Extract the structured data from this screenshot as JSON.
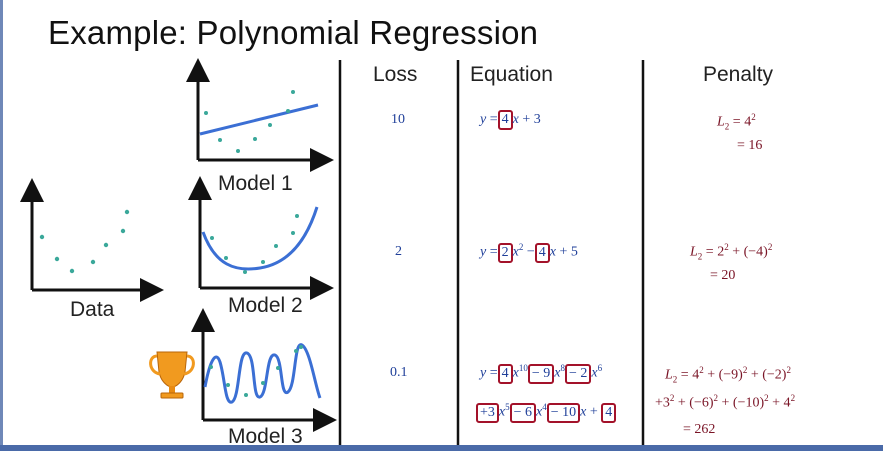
{
  "slide": {
    "title": "Example: Polynomial Regression",
    "headers": {
      "loss": "Loss",
      "equation": "Equation",
      "penalty": "Penalty"
    },
    "data_label": "Data",
    "trophy_icon": "trophy-icon",
    "colors": {
      "equation_text": "#1f3f99",
      "penalty_text": "#7a1426",
      "coefficient_box": "#a3122a",
      "curve": "#3b6fd4",
      "points": "#3aa89a",
      "trophy": "#f19a1f"
    },
    "models": [
      {
        "name": "Model 1",
        "loss": "10",
        "equation": {
          "y": "y",
          "eq": "=",
          "c1": "4",
          "t1": "x",
          "rest": " + 3"
        },
        "penalty": {
          "line1": "= 4",
          "line1_exp": "2",
          "line2": "= 16"
        }
      },
      {
        "name": "Model 2",
        "loss": "2",
        "equation": {
          "y": "y",
          "eq": "=",
          "c1": "2",
          "t1": "x",
          "t1_exp": "2",
          "op1": "−",
          "c2": "4",
          "t2": "x",
          "rest": " + 5"
        },
        "penalty": {
          "line1a": "= 2",
          "line1a_exp": "2",
          "line1b": " + (−4)",
          "line1b_exp": "2",
          "line2": "= 20"
        }
      },
      {
        "name": "Model 3",
        "loss": "0.1",
        "equation": {
          "y": "y",
          "eq": "=",
          "c1": "4",
          "t1": "x",
          "t1_exp": "10",
          "c2": "− 9",
          "t2": "x",
          "t2_exp": "8",
          "c3": "− 2",
          "t3": "x",
          "t3_exp": "6",
          "c4": "+3",
          "t4": "x",
          "t4_exp": "5",
          "c5": "− 6",
          "t5": "x",
          "t5_exp": "4",
          "c6": "− 10",
          "t6": "x",
          "op7": " + ",
          "c7": "4"
        },
        "penalty": {
          "l1a": "= 4",
          "l1a_exp": "2",
          "l1b": " + (−9)",
          "l1b_exp": "2",
          "l1c": " + (−2)",
          "l1c_exp": "2",
          "l2a": "+3",
          "l2a_exp": "2",
          "l2b": " + (−6)",
          "l2b_exp": "2",
          "l2c": " + (−10)",
          "l2c_exp": "2",
          "l2d": " + 4",
          "l2d_exp": "2",
          "l3": "= 262"
        }
      }
    ],
    "penalty_symbol": "L",
    "penalty_sub": "2"
  }
}
